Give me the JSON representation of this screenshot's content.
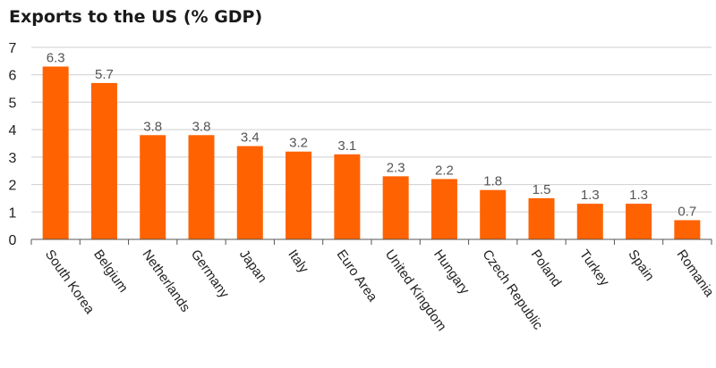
{
  "chart_data": {
    "type": "bar",
    "title": "Exports to the US (% GDP)",
    "categories": [
      "South Korea",
      "Belgium",
      "Netherlands",
      "Germany",
      "Japan",
      "Italy",
      "Euro Area",
      "United Kingdom",
      "Hungary",
      "Czech Republic",
      "Poland",
      "Turkey",
      "Spain",
      "Romania"
    ],
    "values": [
      6.3,
      5.7,
      3.8,
      3.8,
      3.4,
      3.2,
      3.1,
      2.3,
      2.2,
      1.8,
      1.5,
      1.3,
      1.3,
      0.7
    ],
    "value_labels": [
      "6.3",
      "5.7",
      "3.8",
      "3.8",
      "3.4",
      "3.2",
      "3.1",
      "2.3",
      "2.2",
      "1.8",
      "1.5",
      "1.3",
      "1.3",
      "0.7"
    ],
    "yticks": [
      0,
      1,
      2,
      3,
      4,
      5,
      6,
      7
    ],
    "ylim": [
      0,
      7
    ],
    "grid": true,
    "bar_color": "#ff6200",
    "xlabel": "",
    "ylabel": ""
  }
}
